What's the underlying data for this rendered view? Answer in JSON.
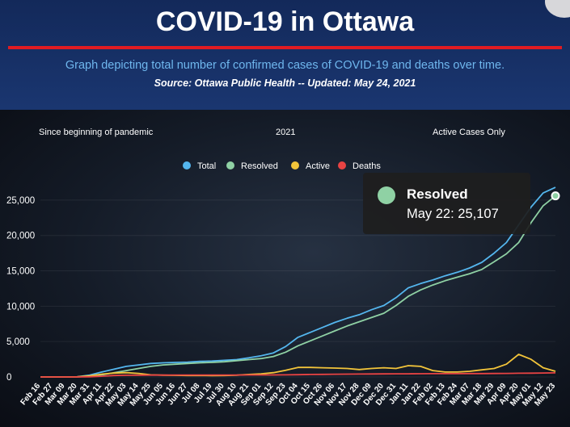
{
  "header": {
    "title": "COVID-19 in Ottawa",
    "subtitle": "Graph depicting total number of confirmed cases of COVID-19 and deaths over time.",
    "source": "Source:  Ottawa Public Health -- Updated:  May 24, 2021"
  },
  "options": {
    "since_beginning": "Since beginning of pandemic",
    "year_2021": "2021",
    "active_only": "Active Cases Only"
  },
  "tooltip": {
    "series": "Resolved",
    "value": "May 22: 25,107",
    "color": "#8fd1a4"
  },
  "colors": {
    "total": "#54b6ee",
    "resolved": "#8fd1a4",
    "active": "#f2c43a",
    "deaths": "#e84343",
    "accent_red": "#e11b22"
  },
  "chart_data": {
    "type": "line",
    "title": "COVID-19 in Ottawa",
    "ylim": [
      0,
      27500
    ],
    "yticks": [
      0,
      5000,
      10000,
      15000,
      20000,
      25000
    ],
    "ytick_labels": [
      "0",
      "5,000",
      "10,000",
      "15,000",
      "20,000",
      "25,000"
    ],
    "categories": [
      "Feb 16",
      "Feb 27",
      "Mar 09",
      "Mar 20",
      "Mar 31",
      "Apr 11",
      "Apr 22",
      "May 03",
      "May 14",
      "May 25",
      "Jun 05",
      "Jun 16",
      "Jun 27",
      "Jul 08",
      "Jul 19",
      "Jul 30",
      "Aug 10",
      "Aug 21",
      "Sep 01",
      "Sep 12",
      "Sep 23",
      "Oct 04",
      "Oct 15",
      "Oct 26",
      "Nov 06",
      "Nov 17",
      "Nov 28",
      "Dec 09",
      "Dec 20",
      "Dec 31",
      "Jan 11",
      "Jan 22",
      "Feb 02",
      "Feb 13",
      "Feb 24",
      "Mar 07",
      "Mar 18",
      "Mar 29",
      "Apr 09",
      "Apr 20",
      "May 01",
      "May 12",
      "May 23"
    ],
    "legend": [
      "Total",
      "Resolved",
      "Active",
      "Deaths"
    ],
    "series": [
      {
        "name": "Total",
        "key": "total",
        "values": [
          0,
          0,
          0,
          20,
          250,
          700,
          1100,
          1500,
          1700,
          1900,
          2000,
          2050,
          2100,
          2200,
          2250,
          2350,
          2450,
          2700,
          3000,
          3400,
          4300,
          5600,
          6300,
          7000,
          7700,
          8300,
          8800,
          9500,
          10100,
          11200,
          12600,
          13200,
          13700,
          14300,
          14800,
          15400,
          16200,
          17500,
          19000,
          21500,
          24000,
          26000,
          26800
        ]
      },
      {
        "name": "Resolved",
        "key": "resolved",
        "values": [
          0,
          0,
          0,
          0,
          100,
          300,
          600,
          900,
          1200,
          1500,
          1700,
          1800,
          1900,
          2000,
          2050,
          2150,
          2300,
          2450,
          2600,
          2900,
          3500,
          4400,
          5100,
          5800,
          6500,
          7200,
          7800,
          8400,
          9000,
          10100,
          11400,
          12300,
          13000,
          13600,
          14100,
          14600,
          15200,
          16300,
          17400,
          19000,
          21800,
          24200,
          25600
        ]
      },
      {
        "name": "Active",
        "key": "active",
        "values": [
          0,
          0,
          0,
          20,
          150,
          400,
          550,
          600,
          500,
          300,
          250,
          230,
          200,
          200,
          190,
          200,
          250,
          350,
          450,
          600,
          950,
          1350,
          1350,
          1300,
          1250,
          1200,
          1050,
          1200,
          1300,
          1200,
          1600,
          1500,
          900,
          700,
          700,
          800,
          1000,
          1200,
          1800,
          3200,
          2500,
          1300,
          800
        ]
      },
      {
        "name": "Deaths",
        "key": "deaths",
        "values": [
          0,
          0,
          0,
          0,
          20,
          100,
          200,
          240,
          250,
          260,
          265,
          270,
          270,
          270,
          270,
          272,
          275,
          280,
          285,
          290,
          300,
          320,
          350,
          370,
          390,
          400,
          410,
          420,
          430,
          440,
          450,
          460,
          465,
          470,
          470,
          475,
          480,
          490,
          500,
          520,
          540,
          560,
          580
        ]
      }
    ]
  }
}
